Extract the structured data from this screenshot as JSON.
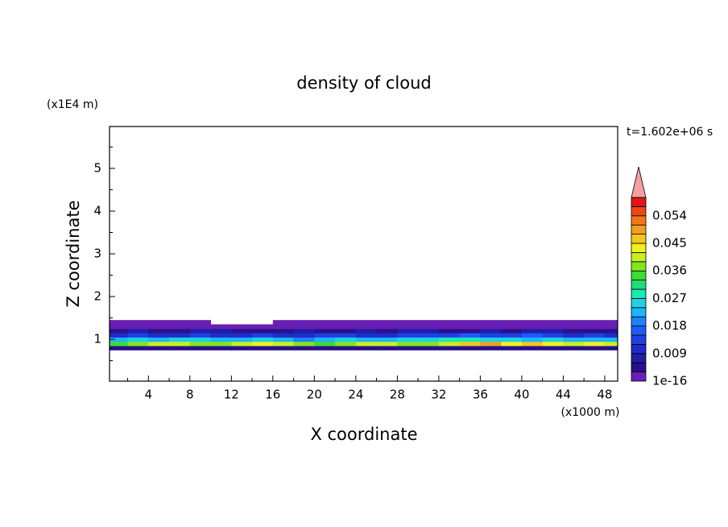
{
  "chart_data": {
    "type": "contour",
    "title": "density of cloud",
    "xlabel": "X coordinate",
    "ylabel": "Z coordinate",
    "xunit": "(x1000 m)",
    "yunit": "(x1E4 m)",
    "time_label": "t=1.602e+06 s",
    "xlim": [
      0.25,
      49.25
    ],
    "ylim": [
      0.02,
      5.98
    ],
    "xticks": [
      4,
      8,
      12,
      16,
      20,
      24,
      28,
      32,
      36,
      40,
      44,
      48
    ],
    "xminorticks": [
      2,
      6,
      10,
      14,
      18,
      22,
      26,
      30,
      34,
      38,
      42,
      46
    ],
    "yticks": [
      1,
      2,
      3,
      4,
      5
    ],
    "yminorticks": [
      0.5,
      1.5,
      2.5,
      3.5,
      4.5,
      5.5
    ],
    "x": [
      1,
      3,
      5,
      7,
      9,
      11,
      13,
      15,
      17,
      19,
      21,
      23,
      25,
      27,
      29,
      31,
      33,
      35,
      37,
      39,
      41,
      43,
      45,
      47,
      49
    ],
    "z": [
      0.8,
      0.9,
      1.0,
      1.1,
      1.2,
      1.3,
      1.4
    ],
    "field": [
      [
        0.004,
        0.005,
        0.004,
        0.005,
        0.005,
        0.004,
        0.004,
        0.005,
        0.004,
        0.005,
        0.005,
        0.004,
        0.005,
        0.004,
        0.005,
        0.005,
        0.004,
        0.005,
        0.004,
        0.005,
        0.004,
        0.005,
        0.004,
        0.005,
        0.004
      ],
      [
        0.033,
        0.036,
        0.039,
        0.041,
        0.038,
        0.036,
        0.04,
        0.042,
        0.039,
        0.037,
        0.035,
        0.038,
        0.04,
        0.039,
        0.036,
        0.038,
        0.041,
        0.046,
        0.048,
        0.044,
        0.047,
        0.043,
        0.039,
        0.042,
        0.04
      ],
      [
        0.022,
        0.024,
        0.021,
        0.025,
        0.026,
        0.023,
        0.022,
        0.024,
        0.021,
        0.02,
        0.022,
        0.024,
        0.023,
        0.021,
        0.025,
        0.026,
        0.027,
        0.028,
        0.026,
        0.024,
        0.022,
        0.025,
        0.021,
        0.023,
        0.022
      ],
      [
        0.01,
        0.012,
        0.009,
        0.011,
        0.013,
        0.01,
        0.009,
        0.012,
        0.011,
        0.01,
        0.013,
        0.012,
        0.009,
        0.011,
        0.012,
        0.013,
        0.014,
        0.015,
        0.013,
        0.012,
        0.016,
        0.014,
        0.011,
        0.012,
        0.01
      ],
      [
        0.005,
        0.006,
        0.004,
        0.005,
        0.006,
        0.007,
        0.005,
        0.004,
        0.005,
        0.006,
        0.005,
        0.004,
        0.006,
        0.005,
        0.007,
        0.006,
        0.005,
        0.004,
        0.006,
        0.005,
        0.006,
        0.007,
        0.005,
        0.004,
        0.005
      ],
      [
        0.001,
        0.002,
        0.001,
        0.002,
        0.001,
        0.001,
        0.002,
        0.001,
        0.002,
        0.001,
        0.001,
        0.002,
        0.001,
        0.001,
        0.002,
        0.001,
        0.002,
        0.001,
        0.001,
        0.002,
        0.001,
        0.001,
        0.002,
        0.001,
        0.001
      ],
      [
        0.001,
        0.001,
        0.002,
        0.001,
        0.001,
        null,
        null,
        null,
        0.001,
        0.001,
        0.002,
        0.001,
        0.001,
        0.001,
        0.001,
        0.002,
        0.001,
        0.001,
        0.001,
        0.001,
        0.001,
        0.001,
        0.002,
        0.001,
        0.001
      ]
    ],
    "colorbar": {
      "levels": [
        1e-16,
        0.003,
        0.006,
        0.009,
        0.012,
        0.015,
        0.018,
        0.021,
        0.024,
        0.027,
        0.03,
        0.033,
        0.036,
        0.039,
        0.042,
        0.045,
        0.048,
        0.051,
        0.054,
        0.057,
        0.06
      ],
      "colors": [
        "#6a1fb4",
        "#2a0f8c",
        "#1e1ea8",
        "#1e2dc8",
        "#1e41e1",
        "#1e5aff",
        "#1e82ff",
        "#1eb4ff",
        "#1ed2e6",
        "#1ee6b4",
        "#1edc78",
        "#3cdc32",
        "#82e61e",
        "#c8f01e",
        "#f0f01e",
        "#f0c81e",
        "#f0a01e",
        "#f07814",
        "#f04614",
        "#e61414"
      ],
      "over_color": "#f4a0a0",
      "ticks": [
        1e-16,
        0.009,
        0.018,
        0.027,
        0.036,
        0.045,
        0.054
      ]
    }
  }
}
